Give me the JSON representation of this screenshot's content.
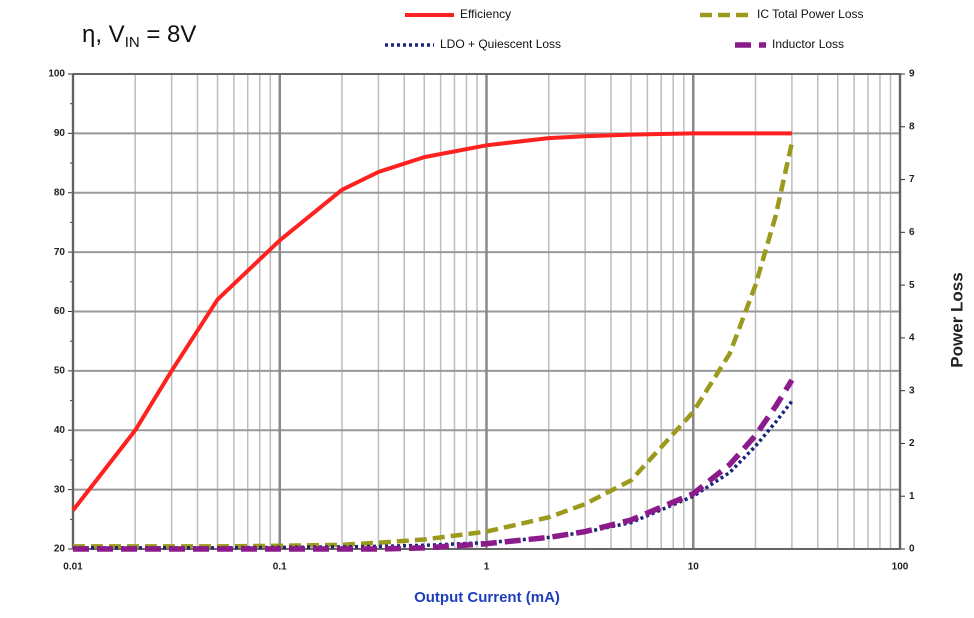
{
  "chart_data": {
    "type": "line",
    "title": {
      "prefix": "η, V",
      "sub": "IN",
      "suffix": " = 8V"
    },
    "x_label": "Output Current (mA)",
    "y2_label": "Power Loss",
    "x_log": true,
    "grid": true,
    "legend": "top-right",
    "x": [
      0.01,
      0.02,
      0.03,
      0.05,
      0.1,
      0.2,
      0.3,
      0.5,
      1,
      2,
      3,
      5,
      10,
      15,
      20,
      25,
      30
    ],
    "xlim": [
      0.01,
      100
    ],
    "xticks": [
      0.01,
      0.1,
      1,
      10,
      100
    ],
    "ylim": [
      20,
      100
    ],
    "yticks": [
      20,
      30,
      40,
      50,
      60,
      70,
      80,
      90,
      100
    ],
    "y2lim": [
      0,
      9
    ],
    "y2ticks": [
      0,
      1,
      2,
      3,
      4,
      5,
      6,
      7,
      8,
      9
    ],
    "series": [
      {
        "name": "Efficiency",
        "color": "#ff2020",
        "dash": "solid",
        "axis": "y",
        "values": [
          26.5,
          40,
          50,
          62,
          72,
          80.5,
          83.5,
          86,
          88,
          89.2,
          89.5,
          89.8,
          90,
          90,
          90,
          90,
          90
        ]
      },
      {
        "name": "IC Total Power Loss",
        "color": "#9c9a1c",
        "dash": "dashed",
        "axis": "y2",
        "values": [
          0.05,
          0.05,
          0.05,
          0.05,
          0.06,
          0.08,
          0.12,
          0.18,
          0.33,
          0.6,
          0.85,
          1.3,
          2.6,
          3.7,
          5.0,
          6.3,
          7.7
        ]
      },
      {
        "name": "LDO + Quiescent Loss",
        "color": "#1a237e",
        "dash": "dotted",
        "axis": "y2",
        "values": [
          0.02,
          0.02,
          0.02,
          0.02,
          0.03,
          0.04,
          0.05,
          0.07,
          0.12,
          0.22,
          0.32,
          0.5,
          1.0,
          1.45,
          1.95,
          2.4,
          2.8
        ]
      },
      {
        "name": "Inductor Loss",
        "color": "#8b1a8b",
        "dash": "longdash",
        "axis": "y2",
        "values": [
          0,
          0,
          0,
          0,
          0,
          0,
          0,
          0.02,
          0.1,
          0.22,
          0.33,
          0.55,
          1.05,
          1.6,
          2.15,
          2.7,
          3.2
        ]
      }
    ]
  }
}
